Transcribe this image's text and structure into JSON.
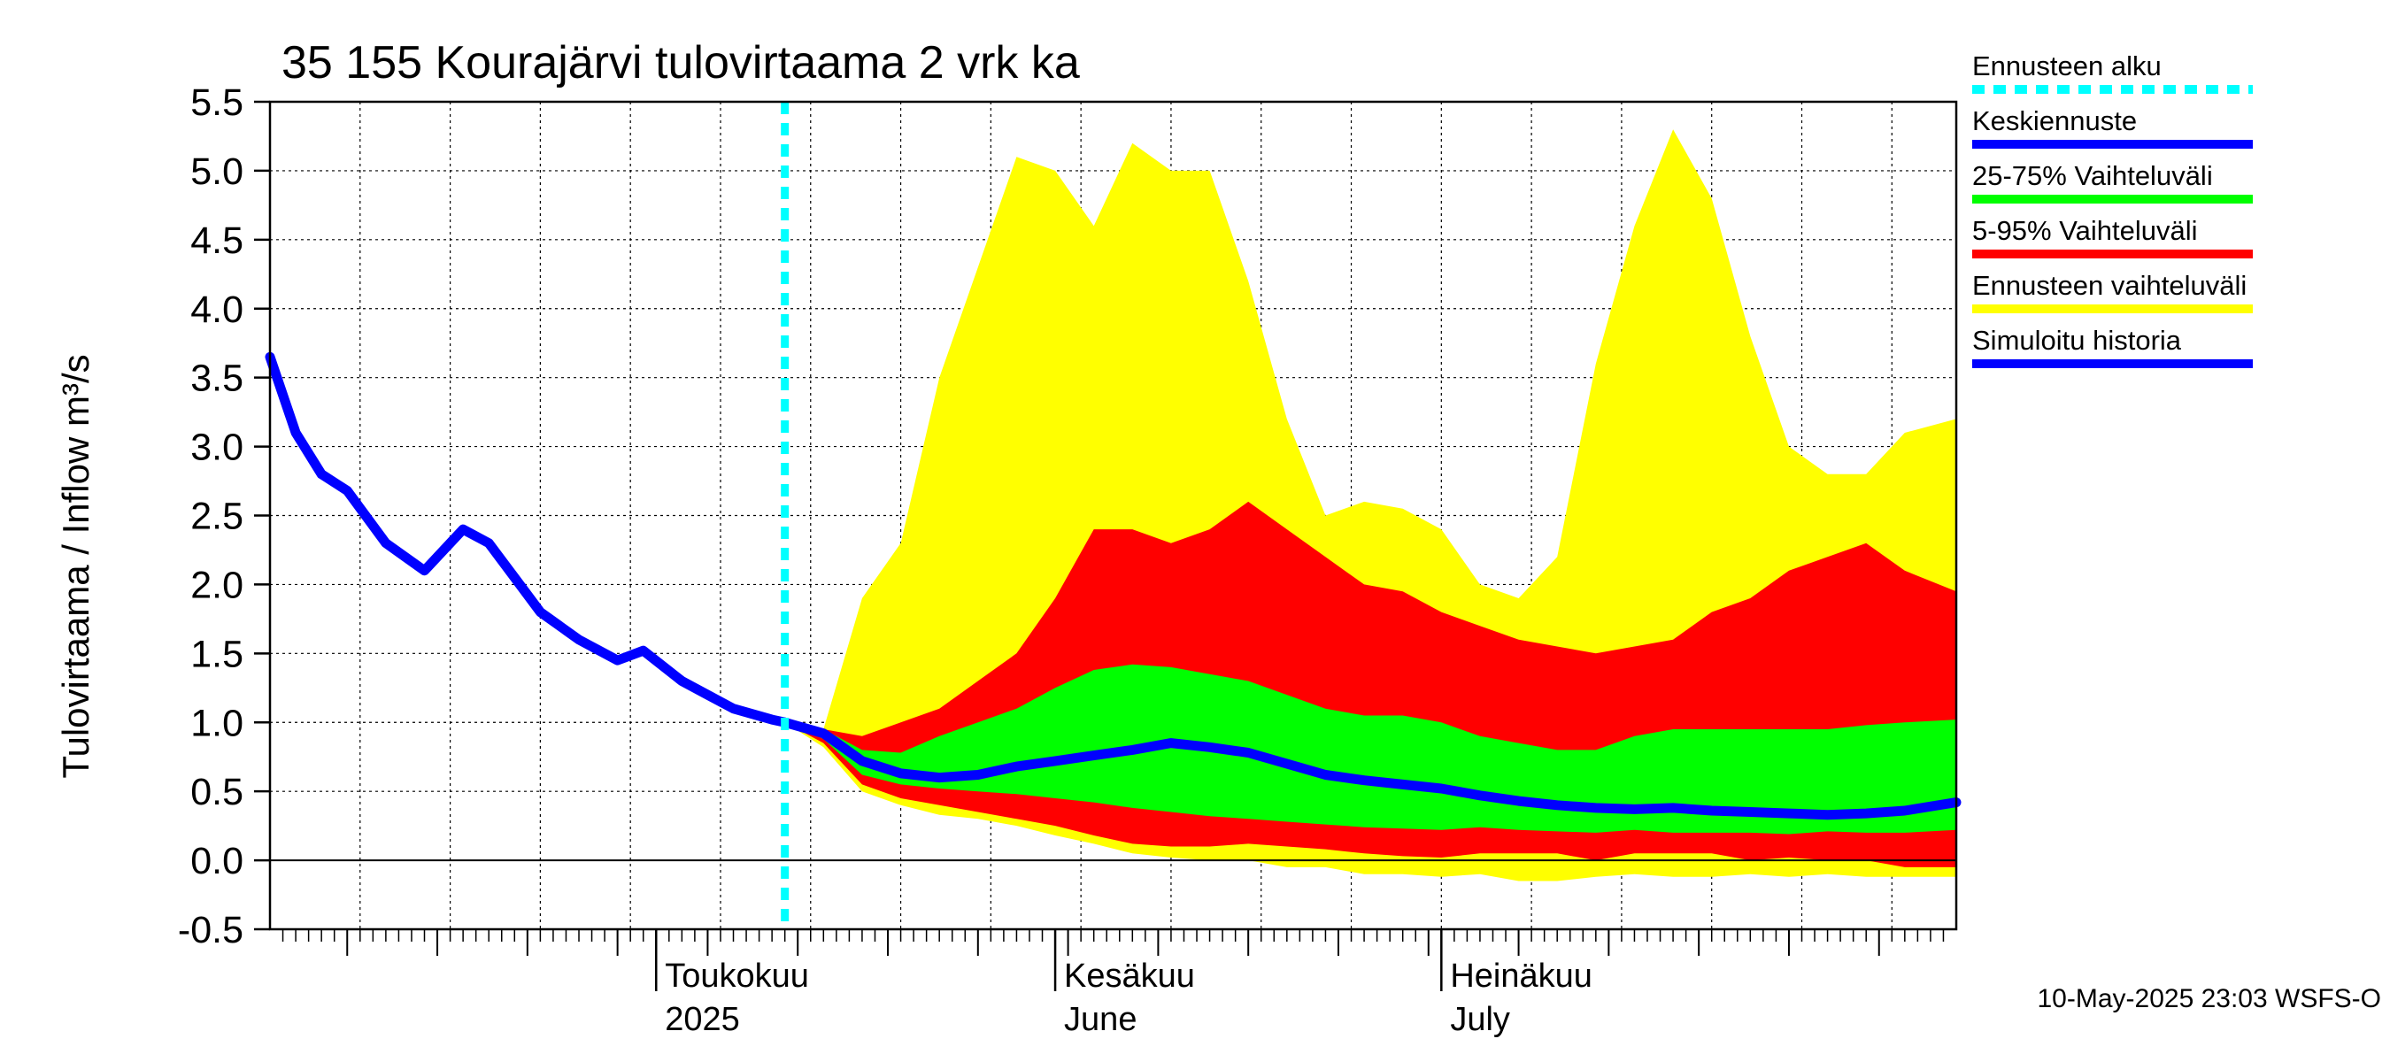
{
  "chart_data": {
    "type": "area",
    "title": "35 155 Kourajärvi tulovirtaama 2 vrk ka",
    "ylabel": "Tulovirtaama / Inflow     m³/s",
    "ylim": [
      -0.5,
      5.5
    ],
    "yticks": [
      "5.5",
      "5.0",
      "4.5",
      "4.0",
      "3.5",
      "3.0",
      "2.5",
      "2.0",
      "1.5",
      "1.0",
      "0.5",
      "0.0",
      "-0.5"
    ],
    "ytick_values": [
      5.5,
      5.0,
      4.5,
      4.0,
      3.5,
      3.0,
      2.5,
      2.0,
      1.5,
      1.0,
      0.5,
      0.0,
      -0.5
    ],
    "x_start": "2025-03-31",
    "x_end": "2025-08-09",
    "month_labels": [
      {
        "date": "2025-04-30",
        "line1": "Toukokuu",
        "line2": "2025"
      },
      {
        "date": "2025-05-31",
        "line1": "Kesäkuu",
        "line2": "June"
      },
      {
        "date": "2025-06-30",
        "line1": "Heinäkuu",
        "line2": "July"
      }
    ],
    "forecast_start": "2025-05-10",
    "grid": true,
    "legend_position": "right",
    "legend": [
      {
        "label": "Ennusteen alku",
        "color": "#00ffff",
        "style": "dashed"
      },
      {
        "label": "Keskiennuste",
        "color": "#0000ff",
        "style": "solid"
      },
      {
        "label": "25-75% Vaihteluväli",
        "color": "#00ff00",
        "style": "solid"
      },
      {
        "label": "5-95% Vaihteluväli",
        "color": "#ff0000",
        "style": "solid"
      },
      {
        "label": "Ennusteen vaihteluväli",
        "color": "#ffff00",
        "style": "solid"
      },
      {
        "label": "Simuloitu historia",
        "color": "#0000ff",
        "style": "solid"
      }
    ],
    "history": {
      "name": "Simuloitu historia",
      "dates": [
        "2025-03-31",
        "2025-04-02",
        "2025-04-04",
        "2025-04-06",
        "2025-04-09",
        "2025-04-12",
        "2025-04-15",
        "2025-04-17",
        "2025-04-19",
        "2025-04-21",
        "2025-04-24",
        "2025-04-27",
        "2025-04-29",
        "2025-05-02",
        "2025-05-04",
        "2025-05-06",
        "2025-05-09",
        "2025-05-10"
      ],
      "values": [
        3.65,
        3.1,
        2.8,
        2.68,
        2.3,
        2.1,
        2.4,
        2.3,
        2.05,
        1.8,
        1.6,
        1.45,
        1.52,
        1.3,
        1.2,
        1.1,
        1.02,
        1.0
      ]
    },
    "forecast": {
      "dates": [
        "2025-05-10",
        "2025-05-13",
        "2025-05-16",
        "2025-05-19",
        "2025-05-22",
        "2025-05-25",
        "2025-05-28",
        "2025-05-31",
        "2025-06-03",
        "2025-06-06",
        "2025-06-09",
        "2025-06-12",
        "2025-06-15",
        "2025-06-18",
        "2025-06-21",
        "2025-06-24",
        "2025-06-27",
        "2025-06-30",
        "2025-07-03",
        "2025-07-06",
        "2025-07-09",
        "2025-07-12",
        "2025-07-15",
        "2025-07-18",
        "2025-07-21",
        "2025-07-24",
        "2025-07-27",
        "2025-07-30",
        "2025-08-02",
        "2025-08-05",
        "2025-08-09"
      ],
      "mean": [
        1.0,
        0.92,
        0.72,
        0.63,
        0.6,
        0.62,
        0.68,
        0.72,
        0.76,
        0.8,
        0.85,
        0.82,
        0.78,
        0.7,
        0.62,
        0.58,
        0.55,
        0.52,
        0.47,
        0.43,
        0.4,
        0.38,
        0.37,
        0.38,
        0.36,
        0.35,
        0.34,
        0.33,
        0.34,
        0.36,
        0.42
      ],
      "p25": [
        1.0,
        0.88,
        0.62,
        0.55,
        0.52,
        0.5,
        0.48,
        0.45,
        0.42,
        0.38,
        0.35,
        0.32,
        0.3,
        0.28,
        0.26,
        0.24,
        0.23,
        0.22,
        0.24,
        0.22,
        0.21,
        0.2,
        0.22,
        0.2,
        0.2,
        0.2,
        0.19,
        0.21,
        0.2,
        0.2,
        0.22
      ],
      "p75": [
        1.0,
        0.95,
        0.8,
        0.78,
        0.9,
        1.0,
        1.1,
        1.25,
        1.38,
        1.42,
        1.4,
        1.35,
        1.3,
        1.2,
        1.1,
        1.05,
        1.05,
        1.0,
        0.9,
        0.85,
        0.8,
        0.8,
        0.9,
        0.95,
        0.95,
        0.95,
        0.95,
        0.95,
        0.98,
        1.0,
        1.02
      ],
      "p05": [
        1.0,
        0.85,
        0.55,
        0.45,
        0.4,
        0.35,
        0.3,
        0.25,
        0.18,
        0.12,
        0.1,
        0.1,
        0.12,
        0.1,
        0.08,
        0.05,
        0.03,
        0.02,
        0.05,
        0.05,
        0.05,
        0.0,
        0.05,
        0.05,
        0.05,
        0.0,
        0.02,
        0.0,
        0.0,
        -0.05,
        -0.05
      ],
      "p95": [
        1.0,
        0.95,
        0.9,
        1.0,
        1.1,
        1.3,
        1.5,
        1.9,
        2.4,
        2.4,
        2.3,
        2.4,
        2.6,
        2.4,
        2.2,
        2.0,
        1.95,
        1.8,
        1.7,
        1.6,
        1.55,
        1.5,
        1.55,
        1.6,
        1.8,
        1.9,
        2.1,
        2.2,
        2.3,
        2.1,
        1.95
      ],
      "min": [
        1.0,
        0.82,
        0.5,
        0.4,
        0.33,
        0.3,
        0.25,
        0.18,
        0.12,
        0.05,
        0.02,
        0.0,
        0.0,
        -0.05,
        -0.05,
        -0.1,
        -0.1,
        -0.12,
        -0.1,
        -0.15,
        -0.15,
        -0.12,
        -0.1,
        -0.12,
        -0.12,
        -0.1,
        -0.12,
        -0.1,
        -0.12,
        -0.12,
        -0.12
      ],
      "max": [
        1.0,
        0.95,
        1.9,
        2.3,
        3.5,
        4.3,
        5.1,
        5.0,
        4.6,
        5.2,
        5.0,
        5.0,
        4.2,
        3.2,
        2.5,
        2.6,
        2.55,
        2.4,
        2.0,
        1.9,
        2.2,
        3.6,
        4.6,
        5.3,
        4.8,
        3.8,
        3.0,
        2.8,
        2.8,
        3.1,
        3.2
      ]
    }
  },
  "timestamp": "10-May-2025 23:03 WSFS-O"
}
